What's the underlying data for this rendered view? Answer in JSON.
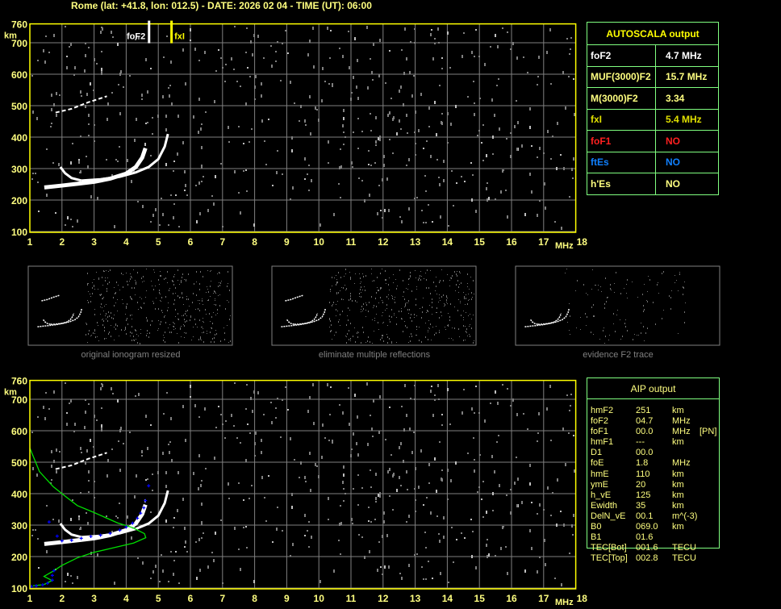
{
  "header": {
    "title": "Rome (lat: +41.8, lon: 012.5) - DATE: 2026 02 04 - TIME (UT): 06:00"
  },
  "colors": {
    "axis": "#ffff00",
    "tick_label": "#ffff80",
    "grid": "#808080",
    "echo": "#ffffff",
    "noise": "#808080",
    "profile": "#00e000",
    "aip_points": "#0000ff",
    "table_border": "#80ff80"
  },
  "autoscala": {
    "title": "AUTOSCALA output",
    "rows": [
      {
        "label": "foF2",
        "value": "4.7 MHz",
        "color": "#ffffff"
      },
      {
        "label": "MUF(3000)F2",
        "value": "15.7 MHz",
        "color": "#ffff80"
      },
      {
        "label": "M(3000)F2",
        "value": "3.34",
        "color": "#ffff80"
      },
      {
        "label": "fxI",
        "value": "5.4 MHz",
        "color": "#e0e000"
      },
      {
        "label": "foF1",
        "value": "NO",
        "color": "#ff2020"
      },
      {
        "label": "ftEs",
        "value": "NO",
        "color": "#1080ff"
      },
      {
        "label": "h'Es",
        "value": "NO",
        "color": "#ffff80"
      }
    ]
  },
  "aip": {
    "title": "AIP output",
    "rows": [
      [
        "hmF2",
        "251",
        "km",
        ""
      ],
      [
        "foF2",
        "04.7",
        "MHz",
        ""
      ],
      [
        "foF1",
        "00.0",
        "MHz",
        "[PN]"
      ],
      [
        "hmF1",
        "---",
        "km",
        ""
      ],
      [
        "D1",
        "00.0",
        "",
        ""
      ],
      [
        "foE",
        "1.8",
        "MHz",
        ""
      ],
      [
        "hmE",
        "110",
        "km",
        ""
      ],
      [
        "ymE",
        "20",
        "km",
        ""
      ],
      [
        "h_vE",
        "125",
        "km",
        ""
      ],
      [
        "Ewidth",
        "35",
        "km",
        ""
      ],
      [
        "DelN_vE",
        "00.1",
        "m^(-3)",
        ""
      ],
      [
        "B0",
        "069.0",
        "km",
        ""
      ],
      [
        "B1",
        "01.6",
        "",
        ""
      ],
      [
        "TEC[Bot]",
        "001.6",
        "TECU",
        ""
      ],
      [
        "TEC[Top]",
        "002.8",
        "TECU",
        ""
      ]
    ]
  },
  "thumbnails": [
    {
      "caption": "original ionogram resized"
    },
    {
      "caption": "eliminate multiple reflections"
    },
    {
      "caption": "evidence F2 trace"
    }
  ],
  "chart_data": [
    {
      "type": "scatter",
      "title": "",
      "xlabel": "MHz",
      "ylabel": "km",
      "xlim": [
        1,
        18
      ],
      "ylim": [
        100,
        760
      ],
      "xticks": [
        "1",
        "2",
        "3",
        "4",
        "5",
        "6",
        "7",
        "8",
        "9",
        "10",
        "11",
        "12",
        "13",
        "14",
        "15",
        "16",
        "17",
        "18"
      ],
      "yticks": [
        "100",
        "200",
        "300",
        "400",
        "500",
        "600",
        "700",
        "760"
      ],
      "grid": true,
      "markers": [
        {
          "label": "foF2",
          "freq": 4.7,
          "color": "#ffffff"
        },
        {
          "label": "fxI",
          "freq": 5.4,
          "color": "#ffff00"
        }
      ],
      "traces": [
        {
          "mode": "o",
          "points": [
            [
              1.45,
              240
            ],
            [
              2.0,
              246
            ],
            [
              2.5,
              252
            ],
            [
              3.0,
              258
            ],
            [
              3.5,
              268
            ],
            [
              4.0,
              284
            ],
            [
              4.3,
              305
            ],
            [
              4.5,
              335
            ],
            [
              4.6,
              365
            ]
          ]
        },
        {
          "mode": "x",
          "points": [
            [
              2.6,
              262
            ],
            [
              3.2,
              266
            ],
            [
              3.8,
              274
            ],
            [
              4.3,
              288
            ],
            [
              4.7,
              305
            ],
            [
              5.0,
              330
            ],
            [
              5.2,
              370
            ],
            [
              5.3,
              410
            ]
          ]
        },
        {
          "mode": "hook",
          "points": [
            [
              1.95,
              305
            ],
            [
              2.1,
              285
            ],
            [
              2.3,
              270
            ],
            [
              2.6,
              262
            ]
          ]
        },
        {
          "mode": "second-hop",
          "points": [
            [
              1.8,
              478
            ],
            [
              2.3,
              490
            ],
            [
              2.8,
              510
            ],
            [
              3.4,
              530
            ]
          ]
        }
      ]
    },
    {
      "type": "scatter",
      "title": "",
      "xlabel": "MHz",
      "ylabel": "km",
      "xlim": [
        1,
        18
      ],
      "ylim": [
        100,
        760
      ],
      "xticks": [
        "1",
        "2",
        "3",
        "4",
        "5",
        "6",
        "7",
        "8",
        "9",
        "10",
        "11",
        "12",
        "13",
        "14",
        "15",
        "16",
        "17",
        "18"
      ],
      "yticks": [
        "100",
        "200",
        "300",
        "400",
        "500",
        "600",
        "700",
        "760"
      ],
      "grid": true,
      "traces": [
        {
          "mode": "o",
          "points": [
            [
              1.45,
              240
            ],
            [
              2.0,
              246
            ],
            [
              2.5,
              252
            ],
            [
              3.0,
              258
            ],
            [
              3.5,
              268
            ],
            [
              4.0,
              284
            ],
            [
              4.3,
              305
            ],
            [
              4.5,
              335
            ],
            [
              4.6,
              365
            ]
          ]
        },
        {
          "mode": "x",
          "points": [
            [
              2.6,
              262
            ],
            [
              3.2,
              266
            ],
            [
              3.8,
              274
            ],
            [
              4.3,
              288
            ],
            [
              4.7,
              305
            ],
            [
              5.0,
              330
            ],
            [
              5.2,
              370
            ],
            [
              5.3,
              410
            ]
          ]
        },
        {
          "mode": "hook",
          "points": [
            [
              1.95,
              305
            ],
            [
              2.1,
              285
            ],
            [
              2.3,
              270
            ],
            [
              2.6,
              262
            ]
          ]
        },
        {
          "mode": "second-hop",
          "points": [
            [
              1.8,
              478
            ],
            [
              2.3,
              490
            ],
            [
              2.8,
              510
            ],
            [
              3.4,
              530
            ]
          ]
        }
      ],
      "profile": [
        [
          1.0,
          545
        ],
        [
          1.3,
          470
        ],
        [
          1.73,
          422
        ],
        [
          2.1,
          392
        ],
        [
          2.48,
          362
        ],
        [
          3.0,
          340
        ],
        [
          3.73,
          307
        ],
        [
          4.2,
          292
        ],
        [
          4.57,
          273
        ],
        [
          4.61,
          260
        ],
        [
          4.23,
          243
        ],
        [
          3.6,
          228
        ],
        [
          2.98,
          213
        ],
        [
          2.48,
          196
        ],
        [
          2.0,
          172
        ],
        [
          1.73,
          154
        ],
        [
          1.44,
          137
        ],
        [
          1.69,
          124
        ],
        [
          1.44,
          111
        ],
        [
          1.1,
          107
        ]
      ],
      "aip_points": [
        [
          1.05,
          105
        ],
        [
          1.2,
          107
        ],
        [
          1.4,
          110
        ],
        [
          1.55,
          115
        ],
        [
          1.7,
          125
        ],
        [
          1.75,
          155
        ],
        [
          1.7,
          140
        ],
        [
          1.6,
          310
        ],
        [
          1.85,
          265
        ],
        [
          2.0,
          250
        ],
        [
          2.3,
          252
        ],
        [
          2.6,
          258
        ],
        [
          2.9,
          264
        ],
        [
          3.2,
          268
        ],
        [
          3.5,
          274
        ],
        [
          3.8,
          284
        ],
        [
          4.0,
          294
        ],
        [
          4.2,
          306
        ],
        [
          4.35,
          322
        ],
        [
          4.45,
          338
        ],
        [
          4.55,
          355
        ],
        [
          4.6,
          378
        ],
        [
          4.7,
          425
        ]
      ]
    }
  ]
}
